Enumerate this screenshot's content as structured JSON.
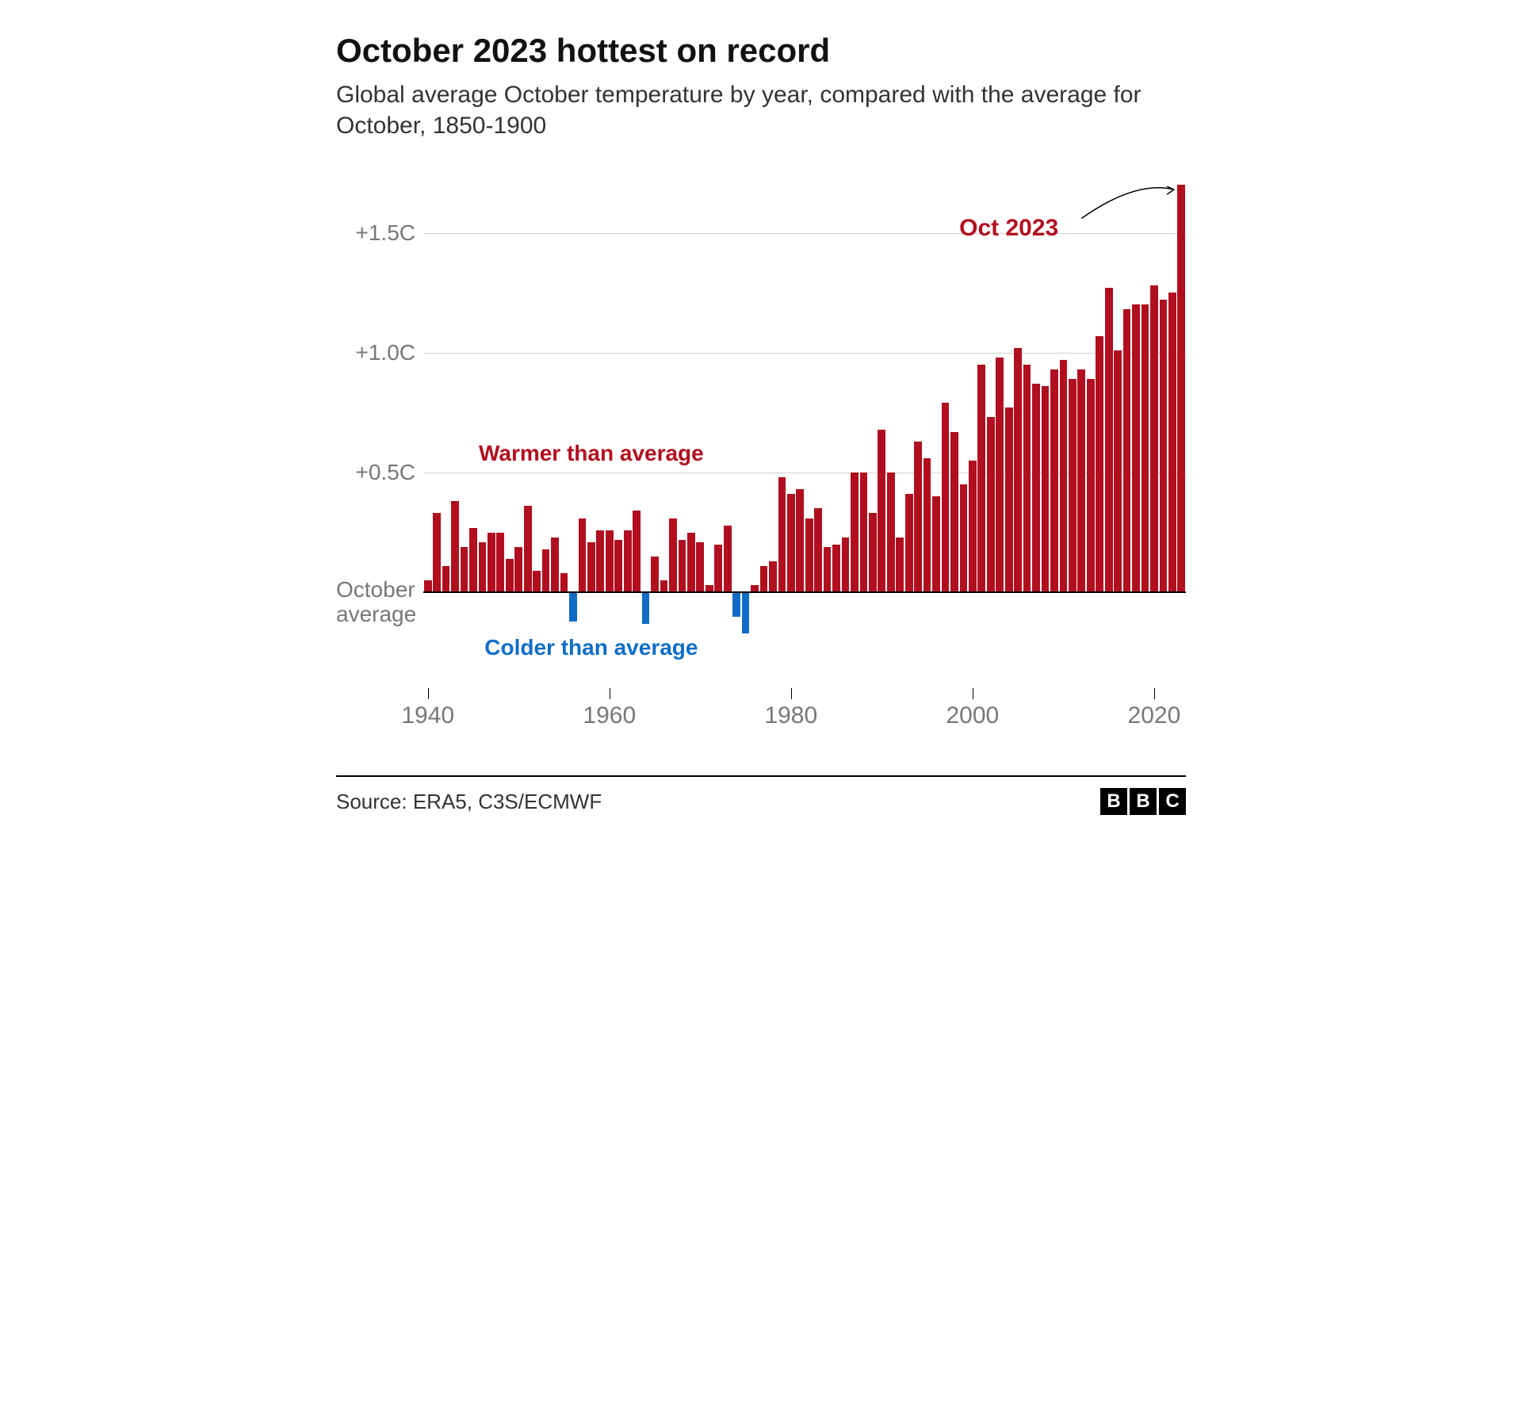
{
  "title": "October 2023 hottest on record",
  "subtitle": "Global average October temperature by year, compared with the average for October, 1850-1900",
  "source": "Source: ERA5, C3S/ECMWF",
  "logo_letters": [
    "B",
    "B",
    "C"
  ],
  "chart": {
    "type": "bar",
    "start_year": 1940,
    "end_year": 2023,
    "values": [
      0.05,
      0.33,
      0.11,
      0.38,
      0.19,
      0.27,
      0.21,
      0.25,
      0.25,
      0.14,
      0.19,
      0.36,
      0.09,
      0.18,
      0.23,
      0.08,
      -0.12,
      0.31,
      0.21,
      0.26,
      0.26,
      0.22,
      0.26,
      0.34,
      -0.13,
      0.15,
      0.05,
      0.31,
      0.22,
      0.25,
      0.21,
      0.03,
      0.2,
      0.28,
      -0.1,
      -0.17,
      0.03,
      0.11,
      0.13,
      0.48,
      0.41,
      0.43,
      0.31,
      0.35,
      0.19,
      0.2,
      0.23,
      0.5,
      0.5,
      0.33,
      0.68,
      0.5,
      0.23,
      0.41,
      0.63,
      0.56,
      0.4,
      0.79,
      0.67,
      0.45,
      0.55,
      0.95,
      0.73,
      0.98,
      0.77,
      1.02,
      0.95,
      0.87,
      0.86,
      0.93,
      0.97,
      0.89,
      0.93,
      0.89,
      1.07,
      1.27,
      1.01,
      1.18,
      1.2,
      1.2,
      1.28,
      1.22,
      1.25,
      1.7
    ],
    "positive_color": "#b10f1f",
    "negative_color": "#0f6dc8",
    "background_color": "#ffffff",
    "grid_color": "#d0d0d0",
    "baseline_color": "#000000",
    "bar_gap_ratio": 0.15,
    "y_axis": {
      "min": -0.3,
      "max": 1.75,
      "grid_values": [
        0.5,
        1.0,
        1.5
      ],
      "grid_labels": [
        "+0.5C",
        "+1.0C",
        "+1.5C"
      ],
      "baseline_label_line1": "October",
      "baseline_label_line2": "average",
      "label_color": "#777777",
      "label_fontsize": 28
    },
    "x_axis": {
      "tick_years": [
        1940,
        1960,
        1980,
        2000,
        2020
      ],
      "label_color": "#777777",
      "label_fontsize": 30
    },
    "annotations": {
      "warmer": {
        "text": "Warmer than average",
        "color": "#b10f1f",
        "fontsize": 28,
        "x_year": 1958,
        "y_value": 0.58
      },
      "colder": {
        "text": "Colder than average",
        "color": "#0f6dc8",
        "fontsize": 28,
        "x_year": 1958,
        "y_value": -0.23
      },
      "callout": {
        "text": "Oct 2023",
        "color": "#b10f1f",
        "fontsize": 30,
        "x_year": 2004,
        "y_value": 1.52
      }
    },
    "arrow": {
      "from_year": 2012,
      "from_value": 1.56,
      "to_year": 2022.2,
      "to_value": 1.68,
      "ctrl_year": 2018,
      "ctrl_value": 1.72,
      "color": "#000000",
      "width": 1.5
    }
  }
}
